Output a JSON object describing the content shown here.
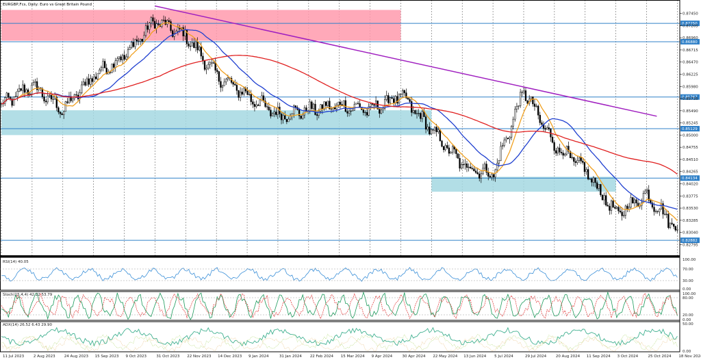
{
  "window": {
    "title": "EURGBP,Fcs, Daily:  Euro vs Great Britain Pound"
  },
  "chart_data": {
    "type": "candlestick",
    "symbol": "EURGBP,Fcs",
    "timeframe": "Daily",
    "title": "EURGBP,Fcs, Daily:  Euro vs Great Britain Pound",
    "y_ticks": [
      "0.87695",
      "0.87450",
      "0.87205",
      "0.86960",
      "0.86715",
      "0.86470",
      "0.86225",
      "0.85980",
      "0.85735",
      "0.85490",
      "0.85245",
      "0.85000",
      "0.84755",
      "0.84510",
      "0.84265",
      "0.84020",
      "0.83775",
      "0.83530",
      "0.83285",
      "0.83040",
      "0.82795"
    ],
    "ylim": [
      0.8258,
      0.8772
    ],
    "x_ticks": [
      "11 Jul 2023",
      "2 Aug 2023",
      "24 Aug 2023",
      "15 Sep 2023",
      "9 Oct 2023",
      "31 Oct 2023",
      "22 Nov 2023",
      "14 Dec 2023",
      "9 Jan 2024",
      "31 Jan 2024",
      "22 Feb 2024",
      "15 Mar 2024",
      "9 Apr 2024",
      "30 Apr 2024",
      "22 May 2024",
      "13 Jun 2024",
      "5 Jul 2024",
      "29 Jul 2024",
      "20 Aug 2024",
      "11 Sep 2024",
      "3 Oct 2024",
      "25 Oct 2024",
      "18 Nov 2024"
    ],
    "price_path": [
      {
        "x": "11 Jul 2023",
        "y": 0.856
      },
      {
        "x": "2 Aug 2023",
        "y": 0.86
      },
      {
        "x": "24 Aug 2023",
        "y": 0.855
      },
      {
        "x": "15 Sep 2023",
        "y": 0.862
      },
      {
        "x": "9 Oct 2023",
        "y": 0.866
      },
      {
        "x": "31 Oct 2023",
        "y": 0.873
      },
      {
        "x": "22 Nov 2023",
        "y": 0.87
      },
      {
        "x": "14 Dec 2023",
        "y": 0.862
      },
      {
        "x": "9 Jan 2024",
        "y": 0.858
      },
      {
        "x": "31 Jan 2024",
        "y": 0.854
      },
      {
        "x": "22 Feb 2024",
        "y": 0.855
      },
      {
        "x": "15 Mar 2024",
        "y": 0.856
      },
      {
        "x": "9 Apr 2024",
        "y": 0.855
      },
      {
        "x": "30 Apr 2024",
        "y": 0.858
      },
      {
        "x": "22 May 2024",
        "y": 0.851
      },
      {
        "x": "13 Jun 2024",
        "y": 0.844
      },
      {
        "x": "5 Jul 2024",
        "y": 0.842
      },
      {
        "x": "29 Jul 2024",
        "y": 0.859
      },
      {
        "x": "20 Aug 2024",
        "y": 0.848
      },
      {
        "x": "11 Sep 2024",
        "y": 0.843
      },
      {
        "x": "3 Oct 2024",
        "y": 0.834
      },
      {
        "x": "25 Oct 2024",
        "y": 0.838
      },
      {
        "x": "18 Nov 2024",
        "y": 0.831
      }
    ],
    "horizontal_levels": [
      {
        "label": "0.87250",
        "value": 0.8725
      },
      {
        "label": "0.86880",
        "value": 0.8688
      },
      {
        "label": "0.85767",
        "value": 0.85767
      },
      {
        "label": "0.85129",
        "value": 0.85129
      },
      {
        "label": "0.84134",
        "value": 0.84134
      },
      {
        "label": "0.82882",
        "value": 0.82882
      }
    ],
    "current_price_label": "0.82882",
    "zones": [
      {
        "color": "#ff9aad",
        "x_from": "11 Jul 2023",
        "x_to": "30 Apr 2024",
        "y_from": 0.869,
        "y_to": 0.8752
      },
      {
        "color": "#a4d8e2",
        "x_from": "11 Jul 2023",
        "x_to": "22 May 2024",
        "y_from": 0.85,
        "y_to": 0.855
      },
      {
        "color": "#a4d8e2",
        "x_from": "22 May 2024",
        "x_to": "3 Oct 2024",
        "y_from": 0.8386,
        "y_to": 0.8416
      }
    ],
    "trendline": {
      "color": "#a020c0",
      "from": {
        "x": "31 Oct 2023",
        "y": 0.876
      },
      "to": {
        "x": "18 Nov 2024",
        "y": 0.8538
      }
    },
    "indicators": {
      "rsi": {
        "label": "RSI(14) 40.05",
        "levels": [
          "100.00",
          "70.00",
          "30.00",
          "0.00"
        ],
        "color": "#3a8fd8"
      },
      "stoch": {
        "label": "Stoch(15,4,4) 42.22 53.79",
        "levels": [
          "100.00",
          "80.00",
          "20.00",
          "0.00"
        ]
      },
      "adx": {
        "label": "ADX(14) 26.52 6.43 29.90",
        "levels": [
          "50.00",
          "0.00"
        ]
      }
    },
    "colors": {
      "ma_red": "#e02020",
      "ma_blue": "#2040d0",
      "ma_orange": "#f0a020",
      "level_line": "#2f80c8",
      "candle": "#000000",
      "rsi": "#3a8fd8",
      "stoch_main": "#1a9a5a",
      "stoch_signal": "#e03030",
      "adx_main": "#40b090",
      "adx_plus": "#b0d870",
      "adx_minus": "#e8c080"
    }
  }
}
